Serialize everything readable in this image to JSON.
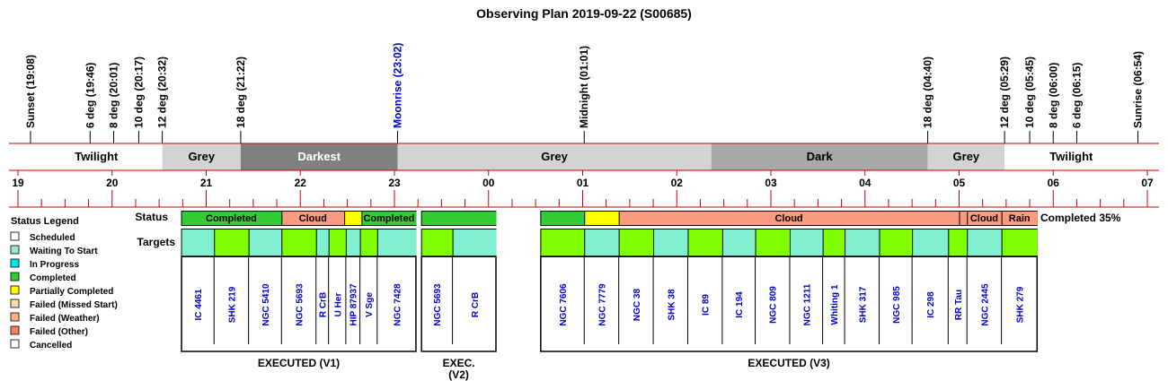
{
  "title": "Observing Plan 2019-09-22 (S00685)",
  "chart_data": {
    "type": "table",
    "title": "Observing Plan 2019-09-22 (S00685)",
    "time_axis": {
      "start": "19:00",
      "end": "07:00",
      "hour_labels": [
        "19",
        "20",
        "21",
        "22",
        "23",
        "00",
        "01",
        "02",
        "03",
        "04",
        "05",
        "06",
        "07"
      ]
    },
    "events": [
      {
        "label": "Sunset (19:08)",
        "time": "19:08",
        "color": "#000000"
      },
      {
        "label": "6 deg (19:46)",
        "time": "19:46",
        "color": "#000000"
      },
      {
        "label": "8 deg (20:01)",
        "time": "20:01",
        "color": "#000000"
      },
      {
        "label": "10 deg (20:17)",
        "time": "20:17",
        "color": "#000000"
      },
      {
        "label": "12 deg (20:32)",
        "time": "20:32",
        "color": "#000000"
      },
      {
        "label": "18 deg (21:22)",
        "time": "21:22",
        "color": "#000000"
      },
      {
        "label": "Moonrise (23:02)",
        "time": "23:02",
        "color": "#0000cc"
      },
      {
        "label": "Midnight (01:01)",
        "time": "01:01",
        "color": "#000000"
      },
      {
        "label": "18 deg (04:40)",
        "time": "04:40",
        "color": "#000000"
      },
      {
        "label": "12 deg (05:29)",
        "time": "05:29",
        "color": "#000000"
      },
      {
        "label": "10 deg (05:45)",
        "time": "05:45",
        "color": "#000000"
      },
      {
        "label": "8 deg (06:00)",
        "time": "06:00",
        "color": "#000000"
      },
      {
        "label": "6 deg (06:15)",
        "time": "06:15",
        "color": "#000000"
      },
      {
        "label": "Sunrise (06:54)",
        "time": "06:54",
        "color": "#000000"
      }
    ],
    "sky_bands": [
      {
        "label": "Twilight",
        "start": "19:08",
        "end": "20:32",
        "fill": "#ffffff",
        "text": "#000000"
      },
      {
        "label": "Grey",
        "start": "20:32",
        "end": "21:22",
        "fill": "#d3d3d3",
        "text": "#000000"
      },
      {
        "label": "Darkest",
        "start": "21:22",
        "end": "23:02",
        "fill": "#808080",
        "text": "#ffffff"
      },
      {
        "label": "Grey",
        "start": "23:02",
        "end": "02:22",
        "fill": "#d3d3d3",
        "text": "#000000"
      },
      {
        "label": "Dark",
        "start": "02:22",
        "end": "04:40",
        "fill": "#a9a9a9",
        "text": "#000000"
      },
      {
        "label": "Grey",
        "start": "04:40",
        "end": "05:29",
        "fill": "#d3d3d3",
        "text": "#000000"
      },
      {
        "label": "Twilight",
        "start": "05:29",
        "end": "06:54",
        "fill": "#ffffff",
        "text": "#000000"
      }
    ],
    "row_labels": {
      "status": "Status",
      "targets": "Targets"
    },
    "completed_summary": "Completed 35%",
    "legend_title": "Status Legend",
    "legend": [
      {
        "label": "Scheduled",
        "color": "#ffffff"
      },
      {
        "label": "Waiting To Start",
        "color": "#99e6d9"
      },
      {
        "label": "In Progress",
        "color": "#00e6e6"
      },
      {
        "label": "Completed",
        "color": "#33cc33"
      },
      {
        "label": "Partially Completed",
        "color": "#ffff00"
      },
      {
        "label": "Failed (Missed Start)",
        "color": "#ffd9b3"
      },
      {
        "label": "Failed (Weather)",
        "color": "#ffb380"
      },
      {
        "label": "Failed (Other)",
        "color": "#ff8066"
      },
      {
        "label": "Cancelled",
        "color": "#ffffff"
      }
    ],
    "blocks": [
      {
        "label": "EXECUTED (V1)",
        "start": "20:44",
        "end": "23:14",
        "status": [
          {
            "label": "Completed",
            "start": "20:44",
            "end": "21:48",
            "color": "#33cc33"
          },
          {
            "label": "Cloud",
            "start": "21:48",
            "end": "22:28",
            "color": "#fa9a80"
          },
          {
            "label": "",
            "start": "22:28",
            "end": "22:39",
            "color": "#ffff00"
          },
          {
            "label": "Completed",
            "start": "22:39",
            "end": "23:14",
            "color": "#33cc33"
          }
        ],
        "targets": [
          {
            "name": "IC 4461",
            "start": "20:44",
            "end": "21:05",
            "color": "#80f0d0"
          },
          {
            "name": "SHK 219",
            "start": "21:05",
            "end": "21:27",
            "color": "#80ff00"
          },
          {
            "name": "NGC 5410",
            "start": "21:27",
            "end": "21:48",
            "color": "#80f0d0"
          },
          {
            "name": "NGC 5693",
            "start": "21:48",
            "end": "22:10",
            "color": "#80ff00"
          },
          {
            "name": "R CrB",
            "start": "22:10",
            "end": "22:18",
            "color": "#80f0d0"
          },
          {
            "name": "U Her",
            "start": "22:18",
            "end": "22:29",
            "color": "#80ff00"
          },
          {
            "name": "HIP 87937",
            "start": "22:29",
            "end": "22:38",
            "color": "#80f0d0"
          },
          {
            "name": "V Sge",
            "start": "22:38",
            "end": "22:49",
            "color": "#80ff00"
          },
          {
            "name": "NGC 7428",
            "start": "22:49",
            "end": "23:14",
            "color": "#80f0d0"
          }
        ]
      },
      {
        "label": "EXEC.",
        "label2": "(V2)",
        "start": "23:17",
        "end": "00:05",
        "status": [
          {
            "label": "",
            "start": "23:17",
            "end": "00:05",
            "color": "#33cc33"
          }
        ],
        "targets": [
          {
            "name": "NGC 5693",
            "start": "23:17",
            "end": "23:37",
            "color": "#80ff00"
          },
          {
            "name": "R CrB",
            "start": "23:37",
            "end": "00:05",
            "color": "#80f0d0"
          }
        ]
      },
      {
        "label": "EXECUTED (V3)",
        "start": "00:33",
        "end": "05:50",
        "status": [
          {
            "label": "",
            "start": "00:33",
            "end": "01:01",
            "color": "#33cc33"
          },
          {
            "label": "",
            "start": "01:01",
            "end": "01:23",
            "color": "#ffff00"
          },
          {
            "label": "Cloud",
            "start": "01:23",
            "end": "05:00",
            "color": "#fa9a80"
          },
          {
            "label": "",
            "start": "05:00",
            "end": "05:05",
            "color": "#fa9a80"
          },
          {
            "label": "Cloud",
            "start": "05:05",
            "end": "05:27",
            "color": "#fa9a80"
          },
          {
            "label": "Rain",
            "start": "05:27",
            "end": "05:50",
            "color": "#fa9a80"
          }
        ],
        "targets": [
          {
            "name": "NGC 7606",
            "start": "00:33",
            "end": "01:01",
            "color": "#80ff00"
          },
          {
            "name": "NGC 7779",
            "start": "01:01",
            "end": "01:23",
            "color": "#80f0d0"
          },
          {
            "name": "NGC 38",
            "start": "01:23",
            "end": "01:45",
            "color": "#80ff00"
          },
          {
            "name": "SHK 38",
            "start": "01:45",
            "end": "02:07",
            "color": "#80f0d0"
          },
          {
            "name": "IC 89",
            "start": "02:07",
            "end": "02:29",
            "color": "#80ff00"
          },
          {
            "name": "IC 194",
            "start": "02:29",
            "end": "02:50",
            "color": "#80f0d0"
          },
          {
            "name": "NGC 809",
            "start": "02:50",
            "end": "03:12",
            "color": "#80ff00"
          },
          {
            "name": "NGC 1211",
            "start": "03:12",
            "end": "03:33",
            "color": "#80f0d0"
          },
          {
            "name": "Whiting 1",
            "start": "03:33",
            "end": "03:47",
            "color": "#80ff00"
          },
          {
            "name": "SHK 317",
            "start": "03:47",
            "end": "04:09",
            "color": "#80f0d0"
          },
          {
            "name": "NGC 985",
            "start": "04:09",
            "end": "04:30",
            "color": "#80ff00"
          },
          {
            "name": "IC 298",
            "start": "04:30",
            "end": "04:53",
            "color": "#80f0d0"
          },
          {
            "name": "RR Tau",
            "start": "04:53",
            "end": "05:05",
            "color": "#80ff00"
          },
          {
            "name": "NGC 2445",
            "start": "05:05",
            "end": "05:27",
            "color": "#80f0d0"
          },
          {
            "name": "SHK 279",
            "start": "05:27",
            "end": "05:50",
            "color": "#80ff00"
          }
        ]
      }
    ]
  }
}
